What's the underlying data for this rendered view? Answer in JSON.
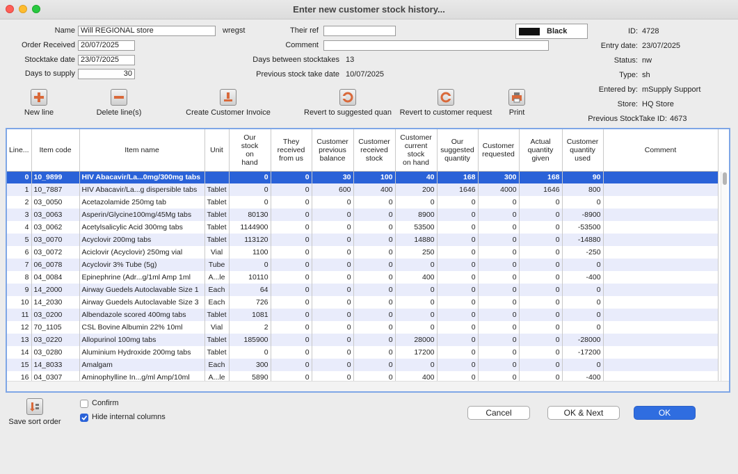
{
  "window": {
    "title": "Enter new customer stock history..."
  },
  "form": {
    "name_label": "Name",
    "name_value": "Will REGIONAL store",
    "name_code": "wregst",
    "order_received_label": "Order Received",
    "order_received_value": "20/07/2025",
    "stocktake_date_label": "Stocktake date",
    "stocktake_date_value": "23/07/2025",
    "days_to_supply_label": "Days to supply",
    "days_to_supply_value": "30",
    "their_ref_label": "Their ref",
    "their_ref_value": "",
    "comment_label": "Comment",
    "comment_value": "",
    "days_between_label": "Days between stocktakes",
    "days_between_value": "13",
    "prev_stock_take_date_label": "Previous stock take date",
    "prev_stock_take_date_value": "10/07/2025",
    "color_label": "Black",
    "color_swatch": "#111111"
  },
  "info": {
    "id_label": "ID:",
    "id_value": "4728",
    "entry_date_label": "Entry date:",
    "entry_date_value": "23/07/2025",
    "status_label": "Status:",
    "status_value": "nw",
    "type_label": "Type:",
    "type_value": "sh",
    "entered_by_label": "Entered by:",
    "entered_by_value": "mSupply Support",
    "store_label": "Store:",
    "store_value": "HQ Store",
    "prev_stocktake_id_label": "Previous StockTake ID:",
    "prev_stocktake_id_value": "4673"
  },
  "toolbar": {
    "new_line": "New line",
    "delete_lines": "Delete line(s)",
    "create_invoice": "Create Customer Invoice",
    "revert_suggested": "Revert to suggested quan",
    "revert_request": "Revert to customer request",
    "print": "Print"
  },
  "table": {
    "columns": [
      "Line...",
      "Item code",
      "Item name",
      "Unit",
      "Our\nstock\non\nhand",
      "They\nreceived\nfrom us",
      "Customer\nprevious\nbalance",
      "Customer\nreceived\nstock",
      "Customer\ncurrent\nstock\non hand",
      "Our\nsuggested\nquantity",
      "Customer\nrequested",
      "Actual\nquantity\ngiven",
      "Customer\nquantity\nused",
      "Comment"
    ],
    "rows": [
      [
        "0",
        "10_9899",
        "HIV Abacavir/La...0mg/300mg tabs",
        "",
        "0",
        "0",
        "30",
        "100",
        "40",
        "168",
        "300",
        "168",
        "90",
        ""
      ],
      [
        "1",
        "10_7887",
        "HIV Abacavir/La...g dispersible tabs",
        "Tablet",
        "0",
        "0",
        "600",
        "400",
        "200",
        "1646",
        "4000",
        "1646",
        "800",
        ""
      ],
      [
        "2",
        "03_0050",
        "Acetazolamide 250mg tab",
        "Tablet",
        "0",
        "0",
        "0",
        "0",
        "0",
        "0",
        "0",
        "0",
        "0",
        ""
      ],
      [
        "3",
        "03_0063",
        "Asperin/Glycine100mg/45Mg tabs",
        "Tablet",
        "80130",
        "0",
        "0",
        "0",
        "8900",
        "0",
        "0",
        "0",
        "-8900",
        ""
      ],
      [
        "4",
        "03_0062",
        "Acetylsalicylic Acid 300mg tabs",
        "Tablet",
        "1144900",
        "0",
        "0",
        "0",
        "53500",
        "0",
        "0",
        "0",
        "-53500",
        ""
      ],
      [
        "5",
        "03_0070",
        "Acyclovir 200mg tabs",
        "Tablet",
        "113120",
        "0",
        "0",
        "0",
        "14880",
        "0",
        "0",
        "0",
        "-14880",
        ""
      ],
      [
        "6",
        "03_0072",
        "Aciclovir (Acyclovir) 250mg vial",
        "Vial",
        "1100",
        "0",
        "0",
        "0",
        "250",
        "0",
        "0",
        "0",
        "-250",
        ""
      ],
      [
        "7",
        "06_0078",
        "Acyclovir 3% Tube (5g)",
        "Tube",
        "0",
        "0",
        "0",
        "0",
        "0",
        "0",
        "0",
        "0",
        "0",
        ""
      ],
      [
        "8",
        "04_0084",
        "Epinephrine (Adr...g/1ml Amp 1ml",
        "A...le",
        "10110",
        "0",
        "0",
        "0",
        "400",
        "0",
        "0",
        "0",
        "-400",
        ""
      ],
      [
        "9",
        "14_2000",
        "Airway Guedels Autoclavable Size 1",
        "Each",
        "64",
        "0",
        "0",
        "0",
        "0",
        "0",
        "0",
        "0",
        "0",
        ""
      ],
      [
        "10",
        "14_2030",
        "Airway Guedels Autoclavable Size 3",
        "Each",
        "726",
        "0",
        "0",
        "0",
        "0",
        "0",
        "0",
        "0",
        "0",
        ""
      ],
      [
        "11",
        "03_0200",
        "Albendazole scored 400mg tabs",
        "Tablet",
        "1081",
        "0",
        "0",
        "0",
        "0",
        "0",
        "0",
        "0",
        "0",
        ""
      ],
      [
        "12",
        "70_1105",
        "CSL Bovine Albumin 22% 10ml",
        "Vial",
        "2",
        "0",
        "0",
        "0",
        "0",
        "0",
        "0",
        "0",
        "0",
        ""
      ],
      [
        "13",
        "03_0220",
        "Allopurinol 100mg tabs",
        "Tablet",
        "185900",
        "0",
        "0",
        "0",
        "28000",
        "0",
        "0",
        "0",
        "-28000",
        ""
      ],
      [
        "14",
        "03_0280",
        "Aluminium Hydroxide 200mg tabs",
        "Tablet",
        "0",
        "0",
        "0",
        "0",
        "17200",
        "0",
        "0",
        "0",
        "-17200",
        ""
      ],
      [
        "15",
        "14_8033",
        "Amalgam",
        "Each",
        "300",
        "0",
        "0",
        "0",
        "0",
        "0",
        "0",
        "0",
        "0",
        ""
      ],
      [
        "16",
        "04_0307",
        "Aminophylline In...g/ml Amp/10ml",
        "A...le",
        "5890",
        "0",
        "0",
        "0",
        "400",
        "0",
        "0",
        "0",
        "-400",
        ""
      ]
    ]
  },
  "bottom": {
    "save_sort": "Save sort order",
    "confirm_label": "Confirm",
    "hide_internal_label": "Hide internal columns",
    "cancel": "Cancel",
    "ok_next": "OK & Next",
    "ok": "OK"
  },
  "colors": {
    "accent": "#2a62d8",
    "alt_row": "#e9ecfb",
    "icon_orange": "#d9693a"
  }
}
